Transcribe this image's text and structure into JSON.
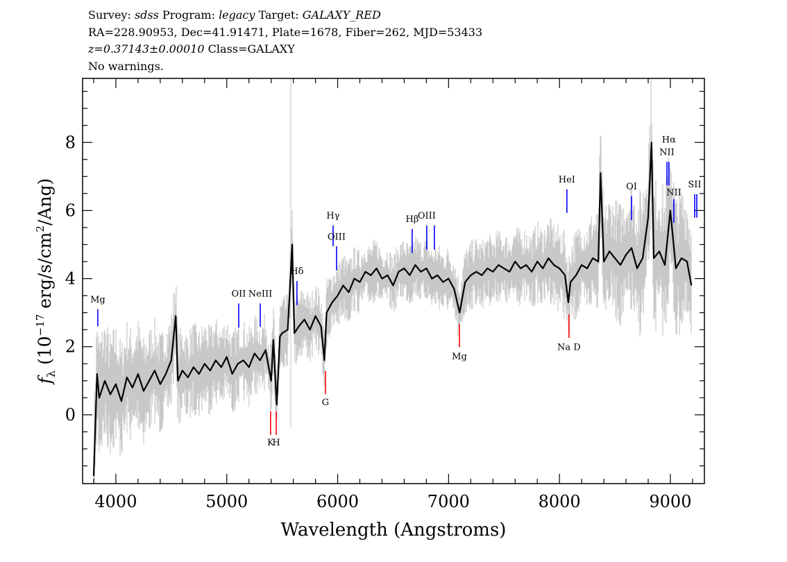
{
  "header": {
    "survey_label": "Survey:",
    "survey": "sdss",
    "program_label": "Program:",
    "program": "legacy",
    "target_label": "Target:",
    "target": "GALAXY_RED",
    "line2": "RA=228.90953, Dec=41.91471, Plate=1678, Fiber=262, MJD=53433",
    "redshift": "z=0.37143±0.00010",
    "class": "Class=GALAXY",
    "warnings": "No warnings."
  },
  "chart_data": {
    "type": "line",
    "xlabel": "Wavelength (Angstroms)",
    "ylabel": "f_λ (10^-17 erg/s/cm^2/Ang)",
    "ylabel_parts": {
      "f": "f",
      "sub": "λ",
      "pre": " (10",
      "exp1": "−17",
      "mid": " erg/s/cm",
      "exp2": "2",
      "post": "/Ang)"
    },
    "xlim": [
      3700,
      9307
    ],
    "ylim": [
      -2.02,
      9.88
    ],
    "xticks": [
      4000,
      5000,
      6000,
      7000,
      8000,
      9000
    ],
    "xtick_labels": [
      "4000",
      "5000",
      "6000",
      "7000",
      "8000",
      "9000"
    ],
    "yticks": [
      0,
      2,
      4,
      6,
      8
    ],
    "ytick_labels": [
      "0",
      "2",
      "4",
      "6",
      "8"
    ],
    "grid": false,
    "colors": {
      "flux": "#000000",
      "error": "#c8c8c8",
      "emission": "#0000ff",
      "absorption": "#ff0000"
    },
    "spectrum": {
      "x": [
        3800,
        3830,
        3850,
        3900,
        3950,
        4000,
        4050,
        4100,
        4150,
        4200,
        4250,
        4300,
        4350,
        4400,
        4450,
        4500,
        4540,
        4560,
        4600,
        4650,
        4700,
        4750,
        4800,
        4850,
        4900,
        4950,
        5000,
        5050,
        5100,
        5150,
        5200,
        5250,
        5300,
        5350,
        5400,
        5420,
        5450,
        5480,
        5500,
        5550,
        5590,
        5610,
        5650,
        5700,
        5750,
        5800,
        5850,
        5880,
        5900,
        5950,
        6000,
        6050,
        6100,
        6150,
        6200,
        6250,
        6300,
        6350,
        6400,
        6450,
        6500,
        6550,
        6600,
        6650,
        6700,
        6750,
        6800,
        6850,
        6900,
        6950,
        7000,
        7050,
        7100,
        7150,
        7200,
        7250,
        7300,
        7350,
        7400,
        7450,
        7500,
        7550,
        7600,
        7650,
        7700,
        7750,
        7800,
        7850,
        7900,
        7950,
        8000,
        8050,
        8080,
        8100,
        8150,
        8200,
        8250,
        8300,
        8350,
        8370,
        8400,
        8450,
        8500,
        8550,
        8600,
        8650,
        8700,
        8750,
        8800,
        8830,
        8850,
        8900,
        8950,
        9000,
        9050,
        9100,
        9150,
        9190
      ],
      "flux": [
        -1.8,
        1.2,
        0.5,
        1.0,
        0.6,
        0.9,
        0.4,
        1.1,
        0.8,
        1.2,
        0.7,
        1.0,
        1.3,
        0.9,
        1.2,
        1.6,
        2.9,
        1.0,
        1.3,
        1.1,
        1.4,
        1.2,
        1.5,
        1.3,
        1.6,
        1.4,
        1.7,
        1.2,
        1.5,
        1.6,
        1.4,
        1.8,
        1.6,
        1.9,
        1.0,
        2.2,
        0.3,
        2.3,
        2.4,
        2.5,
        5.0,
        2.4,
        2.6,
        2.8,
        2.5,
        2.9,
        2.6,
        1.6,
        3.0,
        3.3,
        3.5,
        3.8,
        3.6,
        4.0,
        3.9,
        4.2,
        4.1,
        4.3,
        4.0,
        4.1,
        3.8,
        4.2,
        4.3,
        4.1,
        4.4,
        4.2,
        4.3,
        4.0,
        4.1,
        3.9,
        4.0,
        3.7,
        3.0,
        3.9,
        4.1,
        4.2,
        4.1,
        4.3,
        4.2,
        4.4,
        4.3,
        4.2,
        4.5,
        4.3,
        4.4,
        4.2,
        4.5,
        4.3,
        4.6,
        4.4,
        4.3,
        4.1,
        3.3,
        3.9,
        4.1,
        4.4,
        4.3,
        4.6,
        4.5,
        7.1,
        4.5,
        4.8,
        4.6,
        4.4,
        4.7,
        4.9,
        4.3,
        4.6,
        5.8,
        8.0,
        4.6,
        4.8,
        4.4,
        6.0,
        4.3,
        4.6,
        4.5,
        3.8
      ],
      "error_nodes": {
        "x": [
          3800,
          4500,
          5500,
          6500,
          7500,
          8300,
          8800,
          9200
        ],
        "sigma": [
          1.1,
          0.8,
          0.6,
          0.5,
          0.6,
          0.8,
          1.3,
          1.2
        ]
      },
      "sky_line": 5577
    },
    "lines": [
      {
        "label": "Mg",
        "wave": 3837,
        "kind": "emission",
        "y_top": 3.1,
        "y_bottom": 2.6,
        "label_y": 3.3
      },
      {
        "label": "OII",
        "wave": 5108,
        "kind": "emission",
        "y_top": 3.27,
        "y_bottom": 2.56,
        "label_y": 3.47
      },
      {
        "label": "NeIII",
        "wave": 5302,
        "kind": "emission",
        "y_top": 3.27,
        "y_bottom": 2.58,
        "label_y": 3.47
      },
      {
        "label": "Hδ",
        "wave": 5633,
        "kind": "emission",
        "y_top": 3.93,
        "y_bottom": 3.22,
        "label_y": 4.13
      },
      {
        "label": "Hγ",
        "wave": 5959,
        "kind": "emission",
        "y_top": 5.56,
        "y_bottom": 4.95,
        "label_y": 5.76
      },
      {
        "label": "OIII",
        "wave": 5990,
        "kind": "emission",
        "y_top": 4.95,
        "y_bottom": 4.24,
        "label_y": 5.14
      },
      {
        "label": "Hβ",
        "wave": 6672,
        "kind": "emission",
        "y_top": 5.46,
        "y_bottom": 4.75,
        "label_y": 5.66
      },
      {
        "label": "OIII",
        "wave": 6803,
        "kind": "emission",
        "y_top": 5.56,
        "y_bottom": 4.85,
        "label_y": 5.76
      },
      {
        "label": "",
        "wave": 6872,
        "kind": "emission",
        "y_top": 5.56,
        "y_bottom": 4.85,
        "label_y": 5.76
      },
      {
        "label": "HeI",
        "wave": 8067,
        "kind": "emission",
        "y_top": 6.62,
        "y_bottom": 5.93,
        "label_y": 6.82
      },
      {
        "label": "OI",
        "wave": 8650,
        "kind": "emission",
        "y_top": 6.42,
        "y_bottom": 5.72,
        "label_y": 6.62
      },
      {
        "label": "NII",
        "wave": 8969,
        "kind": "emission",
        "y_top": 7.43,
        "y_bottom": 6.74,
        "label_y": 7.63
      },
      {
        "label": "Hα",
        "wave": 8987,
        "kind": "emission",
        "y_top": 7.43,
        "y_bottom": 6.74,
        "label_y": 8.0
      },
      {
        "label": "NII",
        "wave": 9031,
        "kind": "emission",
        "y_top": 6.33,
        "y_bottom": 5.64,
        "label_y": 6.45
      },
      {
        "label": "SII",
        "wave": 9219,
        "kind": "emission",
        "y_top": 6.48,
        "y_bottom": 5.79,
        "label_y": 6.68
      },
      {
        "label": "",
        "wave": 9238,
        "kind": "emission",
        "y_top": 6.48,
        "y_bottom": 5.79,
        "label_y": 6.68
      },
      {
        "label": "K",
        "wave": 5395,
        "kind": "absorption",
        "y_top": 0.1,
        "y_bottom": -0.59,
        "label_y": -0.9
      },
      {
        "label": "H",
        "wave": 5446,
        "kind": "absorption",
        "y_top": 0.1,
        "y_bottom": -0.59,
        "label_y": -0.9
      },
      {
        "label": "G",
        "wave": 5890,
        "kind": "absorption",
        "y_top": 1.29,
        "y_bottom": 0.61,
        "label_y": 0.28
      },
      {
        "label": "Mg",
        "wave": 7098,
        "kind": "absorption",
        "y_top": 2.67,
        "y_bottom": 1.99,
        "label_y": 1.63
      },
      {
        "label": "Na D",
        "wave": 8086,
        "kind": "absorption",
        "y_top": 2.95,
        "y_bottom": 2.26,
        "label_y": 1.9
      }
    ]
  }
}
